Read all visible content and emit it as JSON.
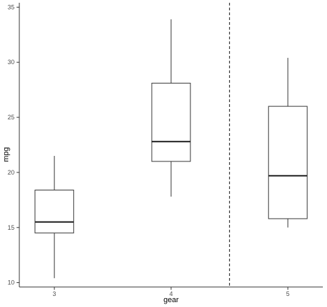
{
  "chart_data": {
    "type": "box",
    "xlabel": "gear",
    "ylabel": "mpg",
    "categories": [
      "3",
      "4",
      "5"
    ],
    "x_positions": [
      3,
      4,
      5
    ],
    "xlim": [
      2.7,
      5.3
    ],
    "ylim": [
      9.6,
      35.4
    ],
    "yticks": [
      10,
      15,
      20,
      25,
      30,
      35
    ],
    "boxes": [
      {
        "category": "3",
        "whisker_low": 10.4,
        "q1": 14.5,
        "median": 15.5,
        "q3": 18.4,
        "whisker_high": 21.5
      },
      {
        "category": "4",
        "whisker_low": 17.8,
        "q1": 21.0,
        "median": 22.8,
        "q3": 28.1,
        "whisker_high": 33.9
      },
      {
        "category": "5",
        "whisker_low": 15.0,
        "q1": 15.8,
        "median": 19.7,
        "q3": 26.0,
        "whisker_high": 30.4
      }
    ],
    "reference_line": {
      "axis": "x",
      "value": 4.5,
      "style": "dashed"
    },
    "grid": false,
    "legend": "none"
  }
}
